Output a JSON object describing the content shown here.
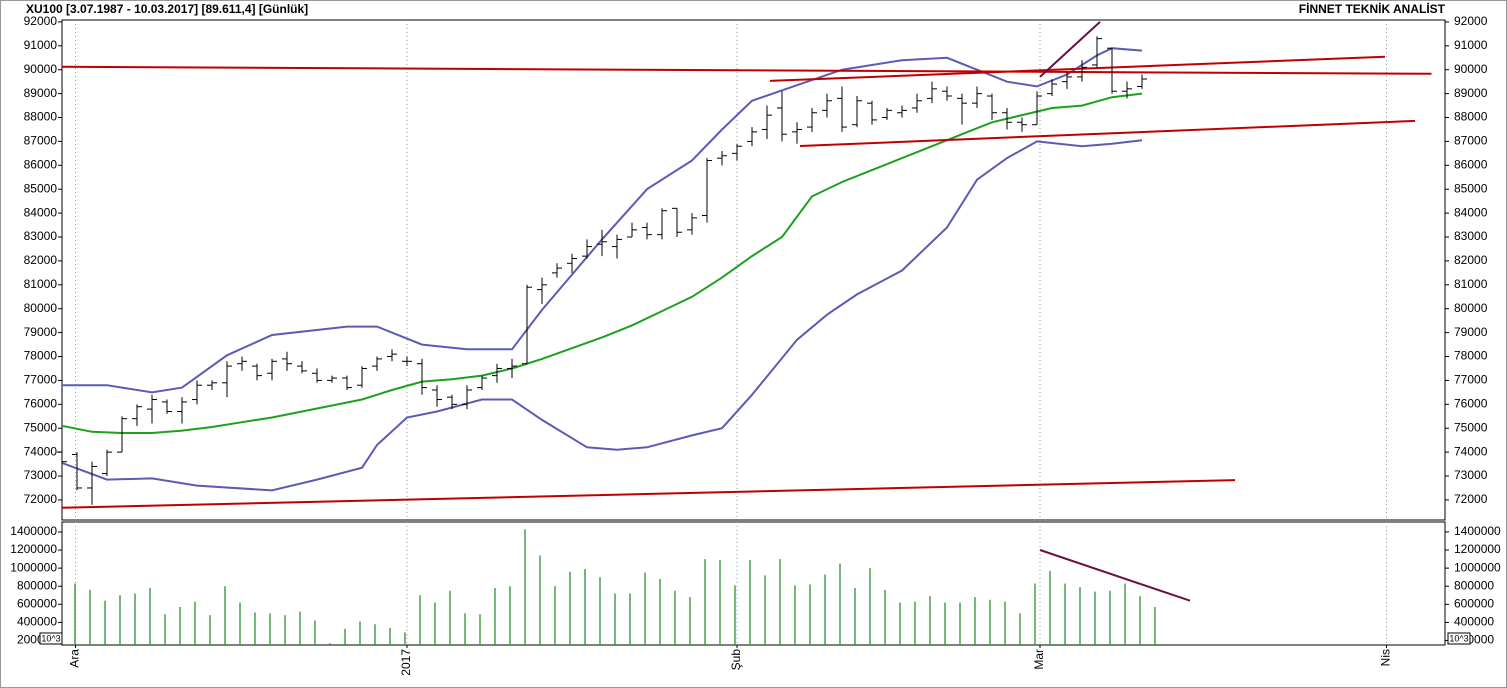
{
  "chart_data": [
    {
      "type": "ohlc",
      "title": "XU100  [3.07.1987 - 10.03.2017]  [89.611,4]  [Günlük]",
      "subtitle": "FİNNET TEKNİK ANALİST",
      "x": [
        0,
        1,
        2,
        3,
        4,
        5,
        6,
        7,
        8,
        9,
        10,
        11,
        12,
        13,
        14,
        15,
        16,
        17,
        18,
        19,
        20,
        21,
        22,
        23,
        24,
        25,
        26,
        27,
        28,
        29,
        30,
        31,
        32,
        33,
        34,
        35,
        36,
        37,
        38,
        39,
        40,
        41,
        42,
        43,
        44,
        45,
        46,
        47,
        48,
        49,
        50,
        51,
        52,
        53,
        54,
        55,
        56,
        57,
        58,
        59,
        60,
        61,
        62,
        63,
        64,
        65,
        66,
        67,
        68,
        69,
        70,
        71,
        72
      ],
      "open": [
        74000,
        73900,
        72500,
        73100,
        74000,
        75400,
        75800,
        76100,
        75700,
        76200,
        76800,
        76900,
        77700,
        77600,
        77300,
        77900,
        77600,
        77300,
        77000,
        77100,
        76800,
        77600,
        78000,
        77800,
        77700,
        76600,
        76300,
        76000,
        76700,
        77200,
        77500,
        77700,
        80800,
        81500,
        81900,
        82200,
        82700,
        82600,
        83000,
        83400,
        83100,
        84200,
        83300,
        83900,
        86300,
        86500,
        87000,
        87500,
        88400,
        87400,
        87600,
        88300,
        88800,
        87700,
        88600,
        88000,
        88200,
        88400,
        88800,
        89100,
        88800,
        88600,
        88900,
        88200,
        87800,
        87700,
        89000,
        89500,
        89700,
        90200,
        90900,
        89100,
        89300
      ],
      "high": [
        74050,
        74000,
        73600,
        74100,
        75500,
        76000,
        76400,
        76200,
        76300,
        77000,
        77000,
        77800,
        78000,
        77700,
        77900,
        78200,
        77800,
        77500,
        77200,
        77200,
        77600,
        78000,
        78300,
        78000,
        77900,
        76800,
        76400,
        76800,
        77200,
        77700,
        77900,
        81000,
        81300,
        81900,
        82300,
        82900,
        83300,
        83100,
        83600,
        83600,
        84200,
        84200,
        84000,
        86300,
        86600,
        86900,
        87600,
        88500,
        89100,
        87800,
        88400,
        89000,
        89300,
        88900,
        88700,
        88400,
        88500,
        89000,
        89500,
        89300,
        89000,
        89300,
        89000,
        88400,
        88000,
        89100,
        89600,
        89900,
        90400,
        91400,
        90900,
        89500,
        89800
      ],
      "low": [
        73500,
        72400,
        71800,
        73000,
        74000,
        75100,
        75200,
        75600,
        75200,
        76000,
        76600,
        76300,
        77400,
        77000,
        77000,
        77400,
        77300,
        76900,
        76900,
        76600,
        76700,
        77400,
        77800,
        77600,
        76400,
        75900,
        75800,
        75800,
        76600,
        76900,
        77100,
        77700,
        80200,
        81300,
        81500,
        82100,
        82200,
        82100,
        83000,
        82900,
        82900,
        83000,
        83100,
        83600,
        86000,
        86200,
        86800,
        87100,
        87000,
        86900,
        87400,
        88000,
        87400,
        87600,
        87700,
        87900,
        88000,
        88200,
        88600,
        88700,
        87700,
        88400,
        87900,
        87500,
        87400,
        87700,
        88900,
        89200,
        89500,
        90100,
        89000,
        88800,
        89200
      ],
      "close": [
        73600,
        72500,
        73400,
        74000,
        75400,
        75900,
        76200,
        75700,
        76100,
        76800,
        76900,
        77600,
        77800,
        77200,
        77800,
        77700,
        77400,
        77000,
        77100,
        76700,
        77500,
        77900,
        78100,
        77800,
        76700,
        76200,
        76000,
        76600,
        77100,
        77500,
        77600,
        80900,
        81000,
        81700,
        82100,
        82600,
        82800,
        82900,
        83300,
        83100,
        84100,
        83200,
        83800,
        86200,
        86400,
        86800,
        87400,
        88100,
        87300,
        87500,
        88200,
        88700,
        87600,
        88700,
        87900,
        88300,
        88300,
        88700,
        89200,
        88900,
        88600,
        89000,
        88200,
        87800,
        87700,
        88900,
        89400,
        89700,
        90100,
        91300,
        89100,
        89200,
        89611.4
      ],
      "color": "#000000",
      "lines": [
        {
          "color": "#5b5bb5",
          "x": [
            0,
            3,
            6,
            8,
            11,
            14,
            19,
            21,
            24,
            27,
            30,
            32,
            36,
            39,
            42,
            44,
            46,
            49,
            52,
            56,
            59,
            61,
            63,
            65,
            67,
            69,
            70,
            72
          ],
          "values": [
            76800,
            76800,
            76500,
            76700,
            78050,
            78900,
            79250,
            79250,
            78500,
            78300,
            78300,
            79950,
            82900,
            85000,
            86200,
            87500,
            88700,
            89350,
            90000,
            90400,
            90500,
            90000,
            89500,
            89300,
            89800,
            90600,
            90900,
            90800
          ]
        },
        {
          "color": "#1ea01e",
          "x": [
            0,
            2,
            4,
            6,
            8,
            10,
            12,
            14,
            16,
            18,
            20,
            22,
            24,
            26,
            28,
            30,
            32,
            34,
            36,
            38,
            40,
            42,
            44,
            46,
            48,
            50,
            52,
            54,
            56,
            58,
            60,
            62,
            64,
            66,
            68,
            70,
            72
          ],
          "values": [
            75100,
            74850,
            74800,
            74800,
            74900,
            75050,
            75250,
            75450,
            75700,
            75950,
            76200,
            76600,
            76950,
            77050,
            77200,
            77500,
            77900,
            78350,
            78800,
            79300,
            79900,
            80500,
            81300,
            82200,
            83000,
            84700,
            85300,
            85800,
            86300,
            86800,
            87300,
            87800,
            88100,
            88400,
            88500,
            88850,
            89000
          ]
        },
        {
          "color": "#5b5bb5",
          "x": [
            0,
            3,
            6,
            9,
            14,
            17,
            20,
            21,
            23,
            25,
            28,
            30,
            32,
            35,
            37,
            39,
            42,
            44,
            46,
            49,
            51,
            53,
            56,
            59,
            61,
            63,
            65,
            68,
            70,
            72
          ],
          "values": [
            73550,
            72850,
            72900,
            72600,
            72400,
            72850,
            73350,
            74300,
            75450,
            75700,
            76200,
            76200,
            75350,
            74200,
            74100,
            74200,
            74700,
            75000,
            76400,
            78700,
            79750,
            80600,
            81600,
            83400,
            85400,
            86300,
            87000,
            86800,
            86900,
            87050
          ]
        },
        {
          "color": "#c00000",
          "x": [
            0,
            91.3
          ],
          "values": [
            90120,
            89830
          ]
        },
        {
          "color": "#c00000",
          "x": [
            47.2,
            88.2
          ],
          "values": [
            89530,
            90540
          ]
        },
        {
          "color": "#c00000",
          "x": [
            49.2,
            90.2
          ],
          "values": [
            86810,
            87860
          ]
        },
        {
          "color": "#c00000",
          "x": [
            0,
            78.2
          ],
          "values": [
            71670,
            72830
          ]
        },
        {
          "color": "#6b1040",
          "x": [
            65.2,
            69.2
          ],
          "values": [
            89700,
            92000
          ]
        }
      ],
      "xlim": [
        0,
        92.2
      ],
      "ylim": [
        71160,
        92080
      ],
      "yticks": [
        72000,
        73000,
        74000,
        75000,
        76000,
        77000,
        78000,
        79000,
        80000,
        81000,
        82000,
        83000,
        84000,
        85000,
        86000,
        87000,
        88000,
        89000,
        90000,
        91000,
        92000
      ],
      "left_tick_color": "#2a9a2a",
      "right_tick_color": "#000000"
    },
    {
      "type": "bar",
      "x": [
        0,
        1,
        2,
        3,
        4,
        5,
        6,
        7,
        8,
        9,
        10,
        11,
        12,
        13,
        14,
        15,
        16,
        17,
        18,
        19,
        20,
        21,
        22,
        23,
        24,
        25,
        26,
        27,
        28,
        29,
        30,
        31,
        32,
        33,
        34,
        35,
        36,
        37,
        38,
        39,
        40,
        41,
        42,
        43,
        44,
        45,
        46,
        47,
        48,
        49,
        50,
        51,
        52,
        53,
        54,
        55,
        56,
        57,
        58,
        59,
        60,
        61,
        62,
        63,
        64,
        65,
        66,
        67,
        68,
        69,
        70,
        71,
        72
      ],
      "values": [
        830000,
        760000,
        640000,
        700000,
        720000,
        780000,
        490000,
        570000,
        630000,
        480000,
        800000,
        620000,
        510000,
        500000,
        480000,
        520000,
        420000,
        170000,
        330000,
        410000,
        380000,
        340000,
        290000,
        700000,
        620000,
        750000,
        500000,
        490000,
        780000,
        800000,
        1430000,
        1140000,
        800000,
        960000,
        990000,
        900000,
        720000,
        720000,
        950000,
        880000,
        750000,
        680000,
        1100000,
        1090000,
        810000,
        1090000,
        920000,
        1100000,
        810000,
        820000,
        930000,
        1050000,
        780000,
        1000000,
        760000,
        620000,
        630000,
        690000,
        620000,
        620000,
        680000,
        650000,
        630000,
        500000,
        830000,
        970000,
        830000,
        790000,
        740000,
        750000,
        830000,
        690000,
        570000
      ],
      "color": "#2f8f2f",
      "lines": [
        {
          "color": "#6b1040",
          "x": [
            65.2,
            75.2
          ],
          "values": [
            1200000,
            640000
          ]
        }
      ],
      "unit_label": "10^3",
      "xlim": [
        0,
        92.2
      ],
      "ylim": [
        150000,
        1510000
      ],
      "yticks": [
        200000,
        400000,
        600000,
        800000,
        1000000,
        1200000,
        1400000
      ],
      "xticks": [
        {
          "value": 0.9,
          "label": "Ara"
        },
        {
          "value": 23,
          "label": "2017"
        },
        {
          "value": 45,
          "label": "Şub"
        },
        {
          "value": 65.2,
          "label": "Mar"
        },
        {
          "value": 88.3,
          "label": "Nis"
        }
      ],
      "left_tick_color": "#000000",
      "right_tick_color": "#000000"
    }
  ]
}
